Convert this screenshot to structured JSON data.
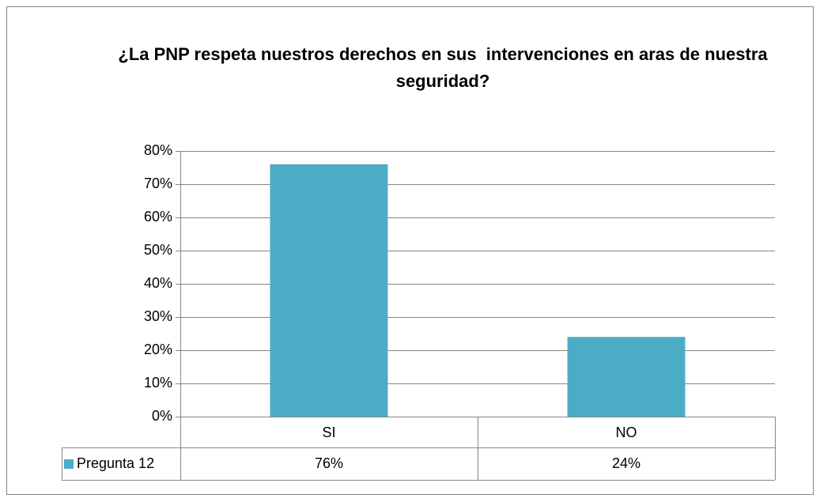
{
  "chart_data": {
    "type": "bar",
    "title": "¿La PNP respeta nuestros derechos en sus  intervenciones en aras de nuestra seguridad?",
    "categories": [
      "SI",
      "NO"
    ],
    "series": [
      {
        "name": "Pregunta 12",
        "color": "#4bacc6",
        "values": [
          76,
          24
        ],
        "value_labels": [
          "76%",
          "24%"
        ]
      }
    ],
    "ylim": [
      0,
      80
    ],
    "yticks": [
      {
        "value": 0,
        "label": "0%"
      },
      {
        "value": 10,
        "label": "10%"
      },
      {
        "value": 20,
        "label": "20%"
      },
      {
        "value": 30,
        "label": "30%"
      },
      {
        "value": 40,
        "label": "40%"
      },
      {
        "value": 50,
        "label": "50%"
      },
      {
        "value": 60,
        "label": "60%"
      },
      {
        "value": 70,
        "label": "70%"
      },
      {
        "value": 80,
        "label": "80%"
      }
    ],
    "grid": true
  }
}
